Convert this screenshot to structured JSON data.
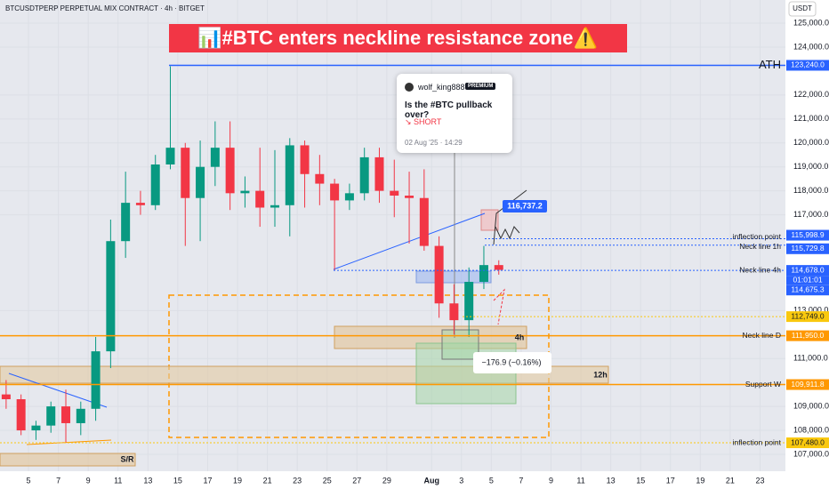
{
  "header": "BTCUSDTPERP PERPETUAL MIX CONTRACT · 4h · BITGET",
  "currency": "USDT",
  "chart_data": {
    "type": "candlestick",
    "title": "📊#BTC enters neckline resistance zone⚠️",
    "x": [
      3,
      4,
      5,
      6,
      7,
      8,
      9,
      10,
      11,
      12,
      13,
      14,
      15,
      16,
      17,
      18,
      19,
      20,
      21,
      22,
      23,
      24,
      25,
      26,
      27,
      28,
      29,
      30,
      31,
      32,
      33,
      34,
      35,
      36
    ],
    "open": [
      109500,
      109300,
      108000,
      108200,
      109000,
      108300,
      108900,
      111300,
      115900,
      117500,
      117400,
      119100,
      119800,
      117700,
      119000,
      119800,
      117900,
      118000,
      117300,
      117400,
      119900,
      118700,
      118300,
      117600,
      117900,
      119400,
      118000,
      117800,
      117700,
      115700,
      113300,
      112600,
      114200,
      114900
    ],
    "high": [
      110100,
      109500,
      108400,
      109200,
      109700,
      109200,
      111900,
      116800,
      118800,
      118000,
      119500,
      123200,
      120000,
      120100,
      120900,
      120900,
      118600,
      119800,
      119700,
      120200,
      120100,
      119500,
      118500,
      118300,
      119800,
      119800,
      119300,
      118800,
      118900,
      116100,
      114100,
      114800,
      115700,
      115100
    ],
    "low": [
      108900,
      107800,
      107600,
      107900,
      107500,
      107800,
      108400,
      110600,
      115200,
      117000,
      117200,
      118900,
      115700,
      115900,
      118200,
      117200,
      117300,
      116500,
      116500,
      116100,
      117300,
      117400,
      114700,
      117200,
      117600,
      117500,
      116900,
      115800,
      115500,
      112700,
      112000,
      111900,
      113900,
      114500
    ],
    "close": [
      109300,
      108000,
      108200,
      109000,
      108300,
      108900,
      111300,
      115900,
      117500,
      117400,
      119100,
      119800,
      117700,
      119000,
      119800,
      117900,
      118000,
      117300,
      117400,
      119900,
      118700,
      118300,
      117600,
      117900,
      119400,
      118000,
      117800,
      117700,
      115700,
      113300,
      112600,
      114200,
      114900,
      114700
    ],
    "up_color": "#089981",
    "down_color": "#f23645",
    "xlim": [
      3.09,
      55.7
    ],
    "xticks": [
      5,
      7,
      9,
      11,
      13,
      15,
      17,
      19,
      21,
      23,
      25,
      27,
      29,
      {
        "value": 32,
        "label": "Aug"
      },
      {
        "value": 34,
        "label": "3"
      },
      {
        "value": 36,
        "label": "5"
      },
      {
        "value": 38,
        "label": "7"
      },
      {
        "value": 40,
        "label": "9"
      },
      {
        "value": 42,
        "label": "11"
      },
      {
        "value": 44,
        "label": "13"
      },
      {
        "value": 46,
        "label": "15"
      },
      {
        "value": 48,
        "label": "17"
      },
      {
        "value": 50,
        "label": "19"
      },
      {
        "value": 52,
        "label": "21"
      },
      {
        "value": 54,
        "label": "23"
      }
    ],
    "ylim": [
      106294,
      125967
    ],
    "yticks": [
      {
        "value": 125000,
        "label": "125,000.0"
      },
      {
        "value": 124000,
        "label": "124,000.0"
      },
      {
        "value": 122000,
        "label": "122,000.0"
      },
      {
        "value": 121000,
        "label": "121,000.0"
      },
      {
        "value": 120000,
        "label": "120,000.0"
      },
      {
        "value": 119000,
        "label": "119,000.0"
      },
      {
        "value": 118000,
        "label": "118,000.0"
      },
      {
        "value": 117000,
        "label": "117,000.0"
      },
      {
        "value": 113000,
        "label": "113,000.0"
      },
      {
        "value": 111000,
        "label": "111,000.0"
      },
      {
        "value": 109000,
        "label": "109,000.0"
      },
      {
        "value": 108000,
        "label": "108,000.0"
      },
      {
        "value": 107000,
        "label": "107,000.0"
      }
    ],
    "levels": [
      {
        "name": "ATH",
        "value": 123240,
        "value_label": "123,240.0",
        "color": "#2962ff"
      },
      {
        "name": "inflection point",
        "value": 115998.9,
        "value_label": "115,998.9",
        "color": "#2962ff"
      },
      {
        "name": "Neck line 1h",
        "value": 115729.8,
        "value_label": "115,729.8",
        "color": "#2962ff"
      },
      {
        "name": "Neck line 4h",
        "value": 114678,
        "value_label": "114,678.0",
        "color": "#2962ff"
      },
      {
        "value": 112749,
        "value_label": "112,749.0",
        "color": "#f9c80e"
      },
      {
        "name": "Neck line D",
        "value": 111950,
        "value_label": "111,950.0",
        "color": "#ff9800"
      },
      {
        "name": "Support W",
        "value": 109911.8,
        "value_label": "109,911.8",
        "color": "#ff9800"
      },
      {
        "name": "inflection point",
        "value": 107480,
        "value_label": "107,480.0",
        "color": "#f9c80e"
      }
    ],
    "countdown": "01:01:01",
    "last_price": 114675.3,
    "last_price_label": "114,675.3",
    "target": "116,737.2",
    "measure": "−176.9 (−0.16%)",
    "zone_labels": [
      "4h",
      "12h",
      "S/R"
    ]
  },
  "idea_card": {
    "author": "wolf_king888",
    "badge": "PREMIUM",
    "question": "Is the #BTC pullback over?",
    "direction": "SHORT",
    "date": "02 Aug '25 · 14:29"
  }
}
